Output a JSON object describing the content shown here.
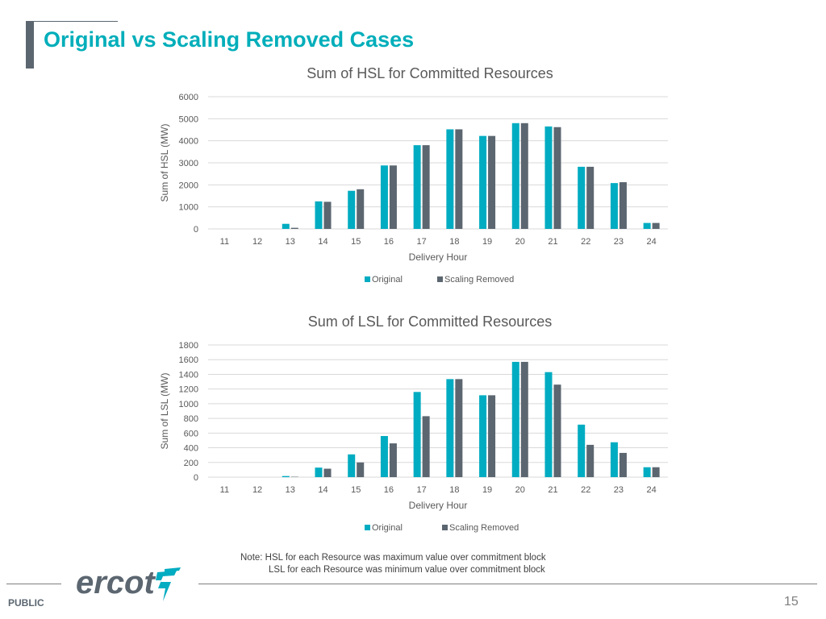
{
  "slide": {
    "title": "Original vs Scaling Removed Cases",
    "note_line1": "Note: HSL for each Resource was maximum value over commitment block",
    "note_line2": "LSL for each Resource was minimum value over commitment block",
    "footer_label": "PUBLIC",
    "page_number": "15",
    "logo_text": "ercot"
  },
  "colors": {
    "original": "#00acc1",
    "scaling_removed": "#5b6670",
    "title": "#00aeba",
    "gridline": "#d9d9d9"
  },
  "chart_data": [
    {
      "type": "bar",
      "title": "Sum of HSL for Committed Resources",
      "xlabel": "Delivery Hour",
      "ylabel": "Sum of HSL (MW)",
      "categories": [
        "11",
        "12",
        "13",
        "14",
        "15",
        "16",
        "17",
        "18",
        "19",
        "20",
        "21",
        "22",
        "23",
        "24"
      ],
      "ylim": [
        0,
        6000
      ],
      "yticks": [
        0,
        1000,
        2000,
        3000,
        4000,
        5000,
        6000
      ],
      "grid": true,
      "legend_position": "bottom",
      "series": [
        {
          "name": "Original",
          "values": [
            0,
            0,
            230,
            1250,
            1730,
            2880,
            3800,
            4520,
            4220,
            4800,
            4650,
            2820,
            2080,
            270
          ]
        },
        {
          "name": "Scaling Removed",
          "values": [
            0,
            0,
            50,
            1230,
            1800,
            2880,
            3800,
            4520,
            4220,
            4800,
            4620,
            2820,
            2120,
            270
          ]
        }
      ]
    },
    {
      "type": "bar",
      "title": "Sum of LSL for Committed Resources",
      "xlabel": "Delivery Hour",
      "ylabel": "Sum of LSL (MW)",
      "categories": [
        "11",
        "12",
        "13",
        "14",
        "15",
        "16",
        "17",
        "18",
        "19",
        "20",
        "21",
        "22",
        "23",
        "24"
      ],
      "ylim": [
        0,
        1800
      ],
      "yticks": [
        0,
        200,
        400,
        600,
        800,
        1000,
        1200,
        1400,
        1600,
        1800
      ],
      "grid": true,
      "legend_position": "bottom",
      "series": [
        {
          "name": "Original",
          "values": [
            0,
            0,
            15,
            130,
            310,
            560,
            1160,
            1335,
            1115,
            1570,
            1430,
            715,
            475,
            135
          ]
        },
        {
          "name": "Scaling Removed",
          "values": [
            0,
            0,
            5,
            115,
            200,
            460,
            830,
            1335,
            1115,
            1570,
            1260,
            440,
            330,
            135
          ]
        }
      ]
    }
  ]
}
